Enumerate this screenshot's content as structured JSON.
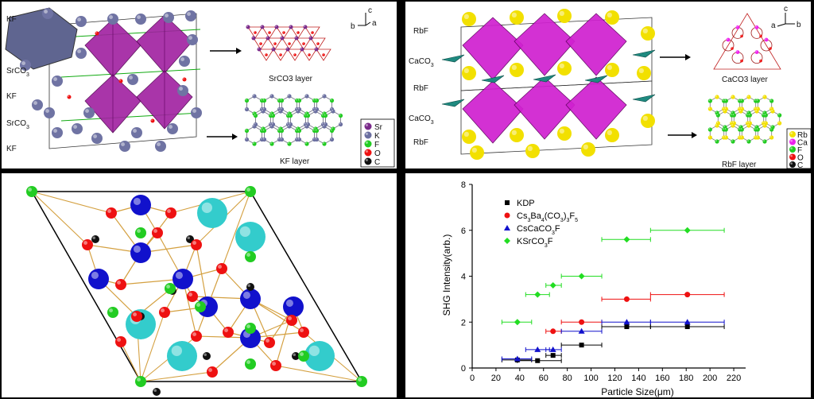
{
  "panel_a": {
    "layer_labels": [
      "KF",
      "SrCO3",
      "KF",
      "SrCO3",
      "KF"
    ],
    "arrow_labels": [
      "SrCO3 layer",
      "KF layer"
    ],
    "axes": [
      "c",
      "b",
      "a"
    ],
    "legend": [
      "Sr",
      "K",
      "F",
      "O",
      "C"
    ],
    "colors": {
      "Sr": "#7a2a8a",
      "K": "#6b6fa0",
      "F": "#22cc22",
      "O": "#ee1111",
      "C": "#111111",
      "poly": "#a020a0"
    }
  },
  "panel_b": {
    "layer_labels": [
      "RbF",
      "CaCO3",
      "RbF",
      "CaCO3",
      "RbF"
    ],
    "arrow_labels": [
      "CaCO3 layer",
      "RbF layer"
    ],
    "axes": [
      "c",
      "a",
      "b"
    ],
    "legend": [
      "Rb",
      "Ca",
      "F",
      "O",
      "C"
    ],
    "colors": {
      "Rb": "#f2e000",
      "Ca": "#ee22ee",
      "F": "#22cc22",
      "O": "#ee1111",
      "C": "#111111",
      "poly": "#d020d0"
    }
  },
  "panel_c": {
    "colors": {
      "cation_large": "#33cccc",
      "cation_small": "#1111cc",
      "O": "#ee1111",
      "F": "#22cc22",
      "C": "#111111",
      "bond": "#d4a040"
    }
  },
  "chart_data": {
    "type": "scatter",
    "xlabel": "Particle Size(μm)",
    "ylabel": "SHG Intensity(arb.)",
    "xlim": [
      0,
      230
    ],
    "ylim": [
      0,
      8
    ],
    "xticks": [
      0,
      20,
      40,
      60,
      80,
      100,
      120,
      140,
      160,
      180,
      200,
      220
    ],
    "yticks": [
      0,
      2,
      4,
      6,
      8
    ],
    "legend_position": "top-left",
    "series": [
      {
        "name": "KDP",
        "color": "#000000",
        "marker": "square",
        "x": [
          38,
          55,
          68,
          92,
          130,
          181
        ],
        "y": [
          0.35,
          0.32,
          0.55,
          1.0,
          1.8,
          1.8
        ],
        "xerr": [
          [
            25,
            50
          ],
          [
            38,
            75
          ],
          [
            62,
            75
          ],
          [
            75,
            109
          ],
          [
            109,
            150
          ],
          [
            150,
            212
          ]
        ]
      },
      {
        "name": "Cs3Ba4(CO3)3F5",
        "color": "#ee1111",
        "marker": "circle",
        "x": [
          68,
          92,
          130,
          181
        ],
        "y": [
          1.6,
          2.0,
          3.0,
          3.2
        ],
        "xerr": [
          [
            62,
            75
          ],
          [
            75,
            109
          ],
          [
            109,
            150
          ],
          [
            150,
            212
          ]
        ]
      },
      {
        "name": "CsCaCO3F",
        "color": "#1111cc",
        "marker": "triangle",
        "x": [
          38,
          55,
          68,
          92,
          130,
          181
        ],
        "y": [
          0.4,
          0.8,
          0.8,
          1.6,
          2.0,
          2.0
        ],
        "xerr": [
          [
            25,
            50
          ],
          [
            45,
            65
          ],
          [
            62,
            75
          ],
          [
            75,
            109
          ],
          [
            109,
            150
          ],
          [
            150,
            212
          ]
        ]
      },
      {
        "name": "KSrCO3F",
        "color": "#22dd22",
        "marker": "diamond",
        "x": [
          38,
          55,
          68,
          92,
          130,
          181
        ],
        "y": [
          2.0,
          3.2,
          3.6,
          4.0,
          5.6,
          6.0
        ],
        "xerr": [
          [
            25,
            50
          ],
          [
            45,
            65
          ],
          [
            62,
            75
          ],
          [
            75,
            109
          ],
          [
            109,
            150
          ],
          [
            150,
            212
          ]
        ]
      }
    ]
  }
}
